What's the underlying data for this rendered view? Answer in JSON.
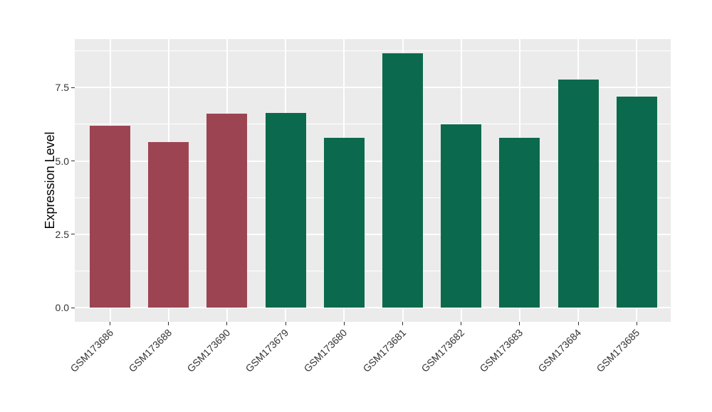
{
  "chart_data": {
    "type": "bar",
    "title": "",
    "xlabel": "",
    "ylabel": "Expression Level",
    "categories": [
      "GSM173686",
      "GSM173688",
      "GSM173690",
      "GSM173679",
      "GSM173680",
      "GSM173681",
      "GSM173682",
      "GSM173683",
      "GSM173684",
      "GSM173685"
    ],
    "values": [
      6.2,
      5.65,
      6.62,
      6.63,
      5.78,
      8.67,
      6.26,
      5.78,
      7.77,
      7.2
    ],
    "bar_colors": [
      "#9D4452",
      "#9D4452",
      "#9D4452",
      "#0B6A4D",
      "#0B6A4D",
      "#0B6A4D",
      "#0B6A4D",
      "#0B6A4D",
      "#0B6A4D",
      "#0B6A4D"
    ],
    "ylim": [
      0,
      9.15
    ],
    "yticks": {
      "values": [
        0,
        2.5,
        5,
        7.5
      ],
      "labels": [
        "0.0",
        "2.5",
        "5.0",
        "7.5"
      ]
    },
    "yticks_minor": [
      1.25,
      3.75,
      6.25,
      8.75
    ],
    "grid": true,
    "legend": "none",
    "colors": {
      "figure_bg": "#FFFFFF",
      "panel_bg": "#EBEBEB",
      "grid": "#FFFFFF",
      "axis_text": "#333333",
      "axis_title": "#000000",
      "bar_red": "#9D4452",
      "bar_green": "#0B6A4D"
    }
  }
}
